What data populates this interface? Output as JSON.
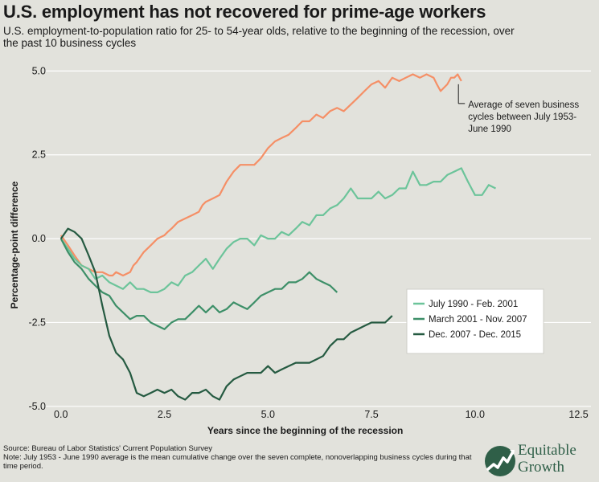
{
  "title": "U.S. employment has not recovered for prime-age workers",
  "subtitle": "U.S. employment-to-population ratio for 25- to 54-year olds, relative to the beginning of the recession, over the past 10 business cycles",
  "footer": {
    "source": "Source: Bureau of Labor Statistics' Current Population Survey",
    "note": "Note: July 1953 - June 1990 average is the mean cumulative change over the seven complete, nonoverlapping business cycles during that time period."
  },
  "logo": {
    "line1": "Equitable",
    "line2": "Growth"
  },
  "colors": {
    "background": "#e2e2dc",
    "gridline": "#ffffff",
    "average": "#f58f66",
    "cycle_1990": "#6cc49a",
    "cycle_2001": "#3d8f68",
    "cycle_2007": "#255a41",
    "logo": "#2f5f48"
  },
  "chart_data": {
    "type": "line",
    "xlabel": "Years since the beginning of the recession",
    "ylabel": "Percentage-point difference",
    "xlim": [
      -0.5,
      12.8
    ],
    "ylim": [
      -5.1,
      5.2
    ],
    "x_ticks": [
      "0.0",
      "2.5",
      "5.0",
      "7.5",
      "10.0",
      "12.5"
    ],
    "y_ticks": [
      "5.0",
      "2.5",
      "0.0",
      "-2.5",
      "-5.0"
    ],
    "grid": "horizontal",
    "legend_position": "center-right",
    "annotation": {
      "text": [
        "Average of seven business",
        "cycles between July 1953-",
        "June 1990"
      ],
      "x": 9.6,
      "y": 4.7
    },
    "series": [
      {
        "name": "Average of seven business cycles between July 1953-June 1990",
        "x": [
          0,
          0.17,
          0.33,
          0.5,
          0.67,
          0.83,
          1.0,
          1.17,
          1.25,
          1.33,
          1.5,
          1.67,
          1.75,
          1.83,
          2.0,
          2.17,
          2.25,
          2.33,
          2.5,
          2.58,
          2.67,
          2.83,
          3.0,
          3.17,
          3.33,
          3.42,
          3.5,
          3.67,
          3.83,
          4.0,
          4.17,
          4.33,
          4.5,
          4.67,
          4.83,
          5.0,
          5.17,
          5.33,
          5.5,
          5.67,
          5.83,
          6.0,
          6.17,
          6.33,
          6.5,
          6.67,
          6.83,
          7.0,
          7.17,
          7.33,
          7.5,
          7.67,
          7.83,
          8.0,
          8.17,
          8.33,
          8.5,
          8.67,
          8.83,
          9.0,
          9.08,
          9.17,
          9.33,
          9.42,
          9.5,
          9.58,
          9.67
        ],
        "values": [
          0.1,
          -0.2,
          -0.5,
          -0.8,
          -0.9,
          -1.0,
          -1.0,
          -1.1,
          -1.1,
          -1.0,
          -1.1,
          -1.0,
          -0.8,
          -0.7,
          -0.4,
          -0.2,
          -0.1,
          0.0,
          0.1,
          0.2,
          0.3,
          0.5,
          0.6,
          0.7,
          0.8,
          1.0,
          1.1,
          1.2,
          1.3,
          1.7,
          2.0,
          2.2,
          2.2,
          2.2,
          2.4,
          2.7,
          2.9,
          3.0,
          3.1,
          3.3,
          3.5,
          3.5,
          3.7,
          3.6,
          3.8,
          3.9,
          3.8,
          4.0,
          4.2,
          4.4,
          4.6,
          4.7,
          4.5,
          4.8,
          4.7,
          4.8,
          4.9,
          4.8,
          4.9,
          4.8,
          4.6,
          4.4,
          4.6,
          4.8,
          4.8,
          4.9,
          4.7
        ]
      },
      {
        "name": "July 1990 - Feb. 2001",
        "x": [
          0,
          0.17,
          0.33,
          0.5,
          0.67,
          0.83,
          1.0,
          1.17,
          1.33,
          1.5,
          1.67,
          1.83,
          2.0,
          2.17,
          2.33,
          2.5,
          2.67,
          2.83,
          3.0,
          3.17,
          3.33,
          3.5,
          3.67,
          3.83,
          4.0,
          4.17,
          4.33,
          4.5,
          4.67,
          4.83,
          5.0,
          5.17,
          5.33,
          5.5,
          5.67,
          5.83,
          6.0,
          6.17,
          6.33,
          6.5,
          6.67,
          6.83,
          7.0,
          7.17,
          7.33,
          7.5,
          7.67,
          7.83,
          8.0,
          8.17,
          8.33,
          8.5,
          8.67,
          8.83,
          9.0,
          9.17,
          9.33,
          9.5,
          9.67,
          9.83,
          10.0,
          10.17,
          10.33,
          10.5
        ],
        "values": [
          0.0,
          -0.3,
          -0.6,
          -0.8,
          -0.9,
          -1.2,
          -1.1,
          -1.3,
          -1.4,
          -1.5,
          -1.3,
          -1.5,
          -1.5,
          -1.6,
          -1.6,
          -1.5,
          -1.3,
          -1.4,
          -1.1,
          -1.0,
          -0.8,
          -0.6,
          -0.9,
          -0.6,
          -0.3,
          -0.1,
          0.0,
          0.0,
          -0.2,
          0.1,
          0.0,
          0.0,
          0.2,
          0.1,
          0.3,
          0.5,
          0.4,
          0.7,
          0.7,
          0.9,
          1.0,
          1.2,
          1.5,
          1.2,
          1.2,
          1.2,
          1.4,
          1.2,
          1.3,
          1.5,
          1.5,
          2.0,
          1.6,
          1.6,
          1.7,
          1.7,
          1.9,
          2.0,
          2.1,
          1.7,
          1.3,
          1.3,
          1.6,
          1.5
        ]
      },
      {
        "name": "March 2001 - Nov. 2007",
        "x": [
          0,
          0.17,
          0.33,
          0.5,
          0.67,
          0.83,
          1.0,
          1.17,
          1.33,
          1.5,
          1.67,
          1.83,
          2.0,
          2.17,
          2.33,
          2.5,
          2.67,
          2.83,
          3.0,
          3.17,
          3.33,
          3.5,
          3.67,
          3.83,
          4.0,
          4.17,
          4.33,
          4.5,
          4.67,
          4.83,
          5.0,
          5.17,
          5.33,
          5.5,
          5.67,
          5.83,
          6.0,
          6.17,
          6.33,
          6.5,
          6.67
        ],
        "values": [
          0.0,
          -0.4,
          -0.7,
          -0.9,
          -1.2,
          -1.4,
          -1.6,
          -1.7,
          -2.0,
          -2.2,
          -2.4,
          -2.3,
          -2.3,
          -2.5,
          -2.6,
          -2.7,
          -2.5,
          -2.4,
          -2.4,
          -2.2,
          -2.0,
          -2.2,
          -2.0,
          -2.2,
          -2.1,
          -1.9,
          -2.0,
          -2.1,
          -1.9,
          -1.7,
          -1.6,
          -1.5,
          -1.5,
          -1.3,
          -1.3,
          -1.2,
          -1.0,
          -1.2,
          -1.3,
          -1.4,
          -1.6
        ]
      },
      {
        "name": "Dec. 2007 - Dec. 2015",
        "x": [
          0,
          0.17,
          0.33,
          0.5,
          0.67,
          0.83,
          1.0,
          1.17,
          1.33,
          1.5,
          1.67,
          1.83,
          2.0,
          2.17,
          2.33,
          2.5,
          2.67,
          2.83,
          3.0,
          3.17,
          3.33,
          3.5,
          3.67,
          3.83,
          4.0,
          4.17,
          4.33,
          4.5,
          4.67,
          4.83,
          5.0,
          5.17,
          5.33,
          5.5,
          5.67,
          5.83,
          6.0,
          6.17,
          6.33,
          6.5,
          6.67,
          6.83,
          7.0,
          7.17,
          7.33,
          7.5,
          7.67,
          7.83,
          8.0
        ],
        "values": [
          0.0,
          0.3,
          0.2,
          0.0,
          -0.5,
          -1.0,
          -2.0,
          -2.9,
          -3.4,
          -3.6,
          -4.0,
          -4.6,
          -4.7,
          -4.6,
          -4.5,
          -4.6,
          -4.5,
          -4.7,
          -4.8,
          -4.6,
          -4.6,
          -4.5,
          -4.7,
          -4.8,
          -4.4,
          -4.2,
          -4.1,
          -4.0,
          -4.0,
          -4.0,
          -3.8,
          -4.0,
          -3.9,
          -3.8,
          -3.7,
          -3.7,
          -3.7,
          -3.6,
          -3.5,
          -3.2,
          -3.0,
          -3.0,
          -2.8,
          -2.7,
          -2.6,
          -2.5,
          -2.5,
          -2.5,
          -2.3
        ]
      }
    ]
  }
}
